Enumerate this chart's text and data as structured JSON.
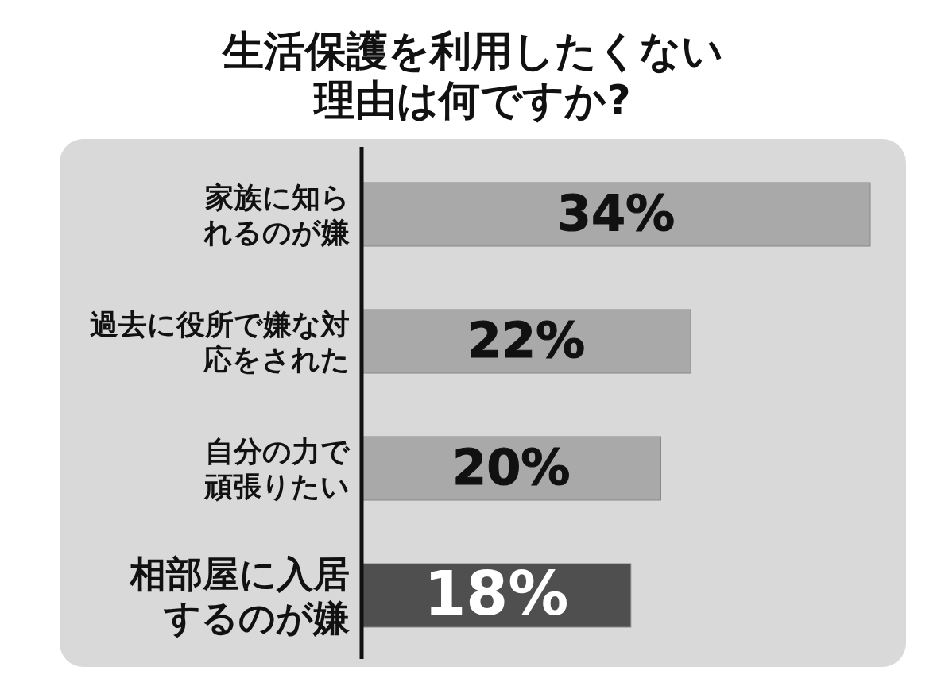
{
  "chart_data": {
    "type": "bar",
    "orientation": "horizontal",
    "title": "生活保護を利用したくない理由は何ですか?",
    "categories": [
      "家族に知られるのが嫌",
      "過去に役所で嫌な対応をされた",
      "自分の力で頑張りたい",
      "相部屋に入居するのが嫌"
    ],
    "values": [
      34,
      22,
      20,
      18
    ],
    "colors": [
      "#a9a9a9",
      "#a9a9a9",
      "#a9a9a9",
      "#4f4f4f"
    ],
    "value_labels": [
      "34%",
      "22%",
      "20%",
      "18%"
    ],
    "tick_labels": "y"
  }
}
